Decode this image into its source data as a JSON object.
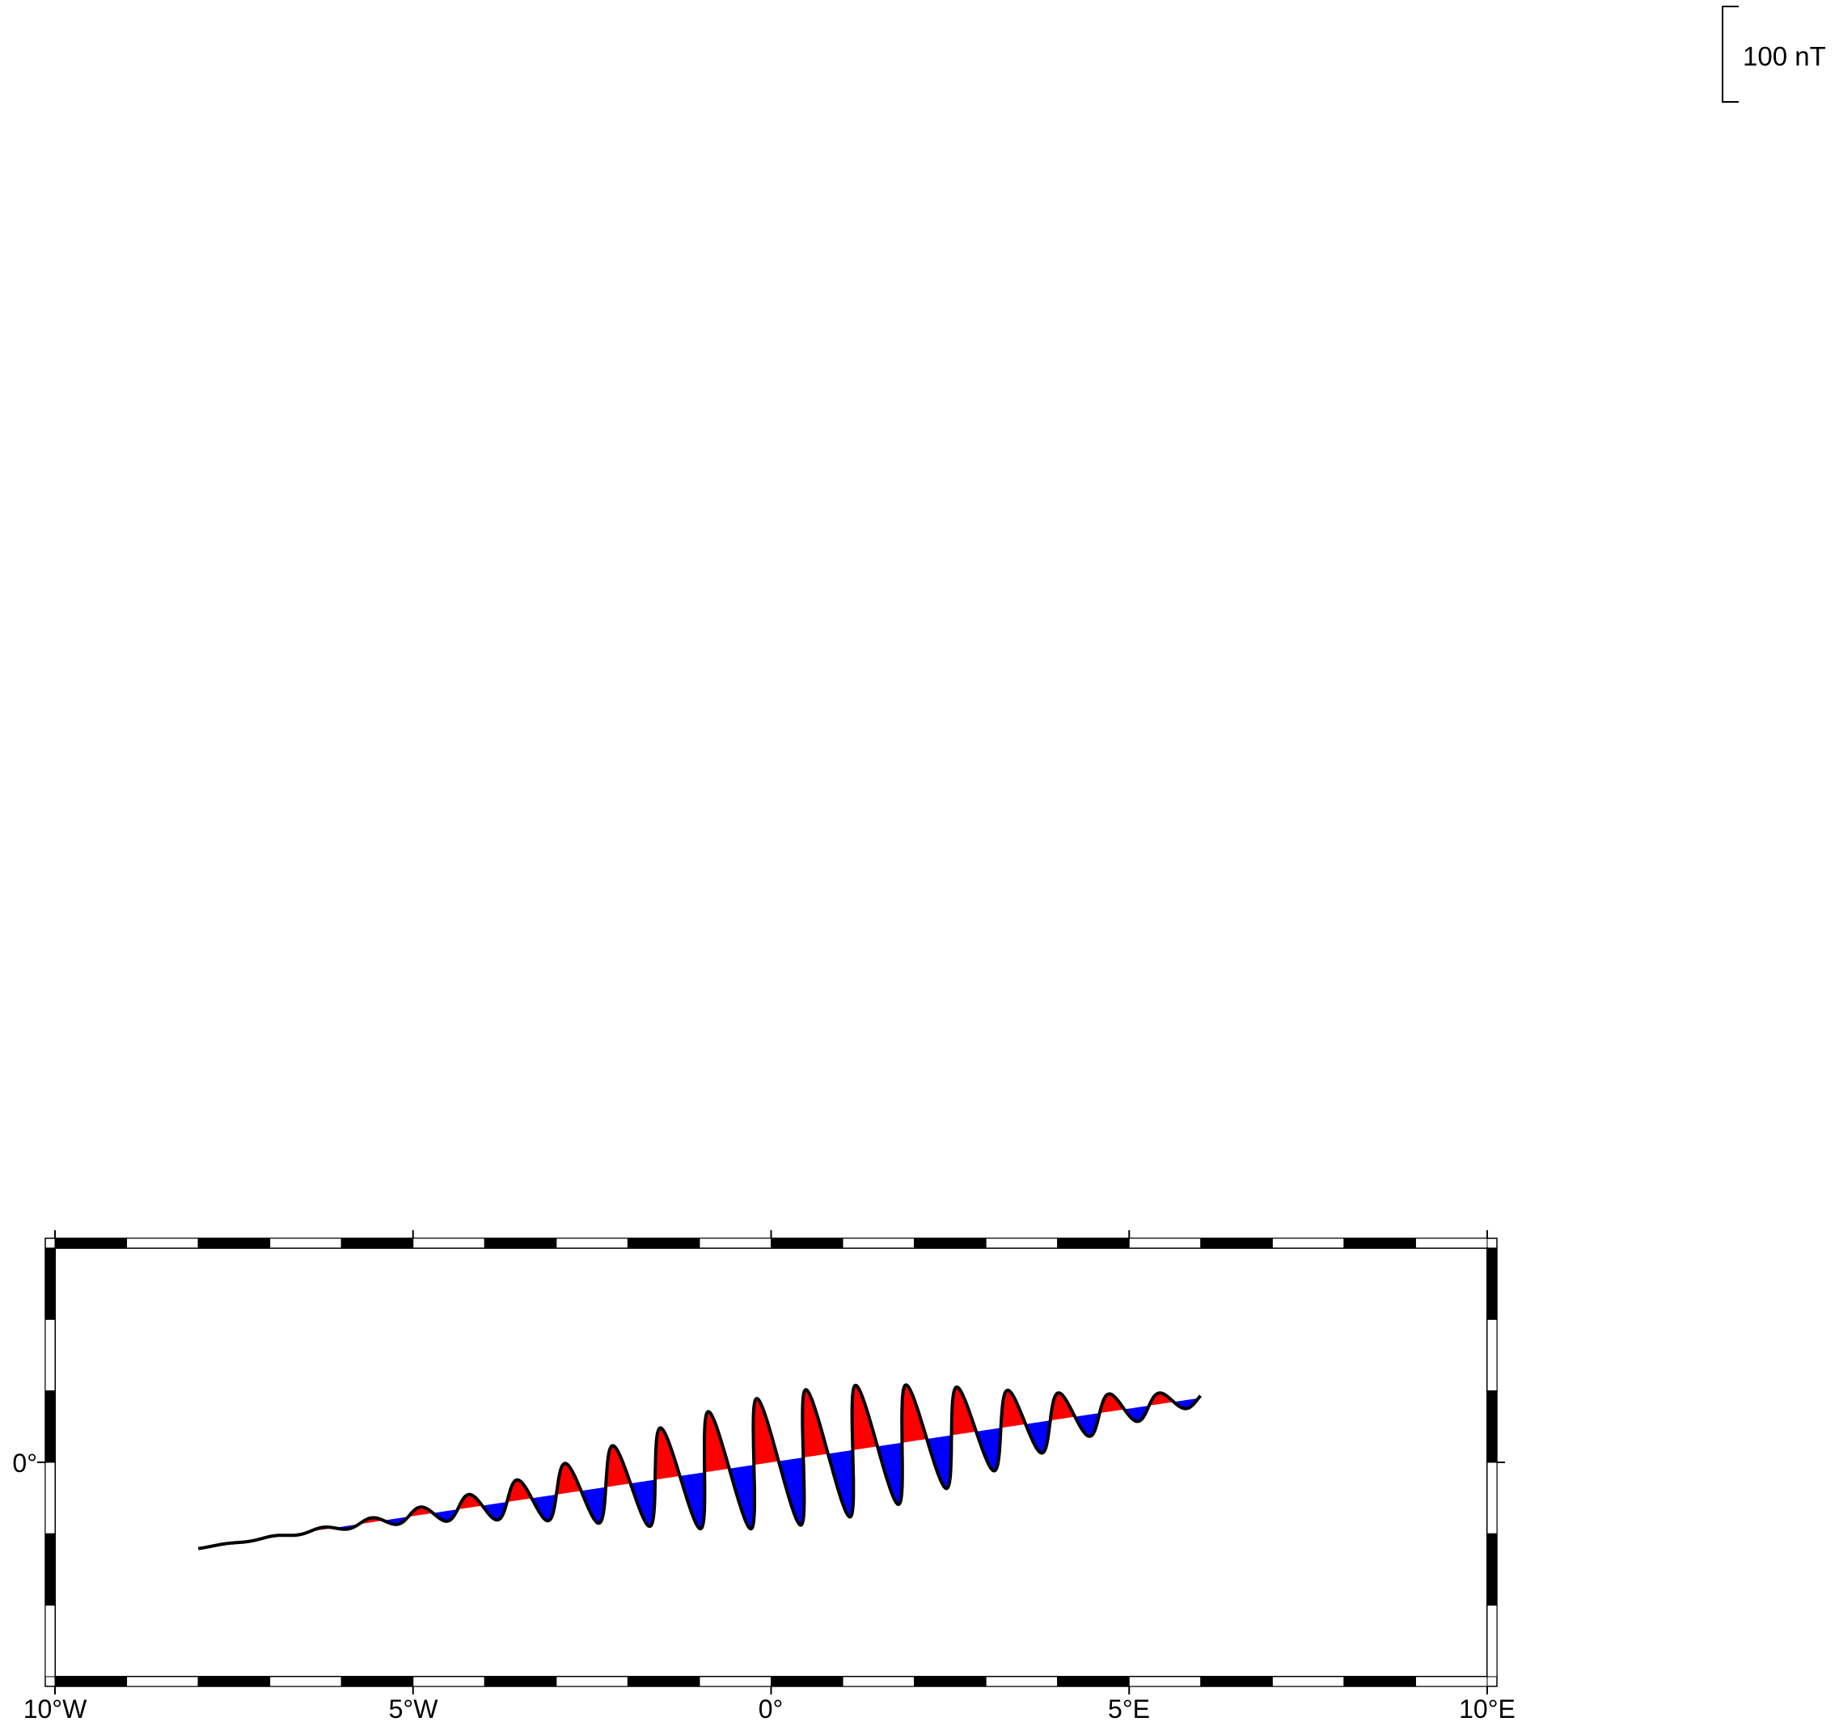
{
  "scale_bar": {
    "label": "100 nT",
    "value_nT": 100
  },
  "map": {
    "region": {
      "lon_min": -10,
      "lon_max": 10
    },
    "x_ticks": [
      {
        "lon": -10,
        "label": "10°W"
      },
      {
        "lon": -5,
        "label": "5°W"
      },
      {
        "lon": 0,
        "label": "0°"
      },
      {
        "lon": 5,
        "label": "5°E"
      },
      {
        "lon": 10,
        "label": "10°E"
      }
    ],
    "y_ticks": [
      {
        "lat": 0,
        "label": "0°"
      }
    ],
    "colors": {
      "positive_fill": "#ff0000",
      "negative_fill": "#0000ff",
      "track_line": "#000000",
      "frame_dark": "#000000",
      "frame_light": "#ffffff"
    }
  },
  "track": {
    "start": {
      "lon": -8,
      "lat": -1.2
    },
    "end": {
      "lon": 6,
      "lat": 0.9
    },
    "anomaly_peak_nT": 70,
    "oscillation_period_deg": 1.0,
    "anomaly_center_lon": 0.5,
    "envelope_width_deg": 2.6
  }
}
